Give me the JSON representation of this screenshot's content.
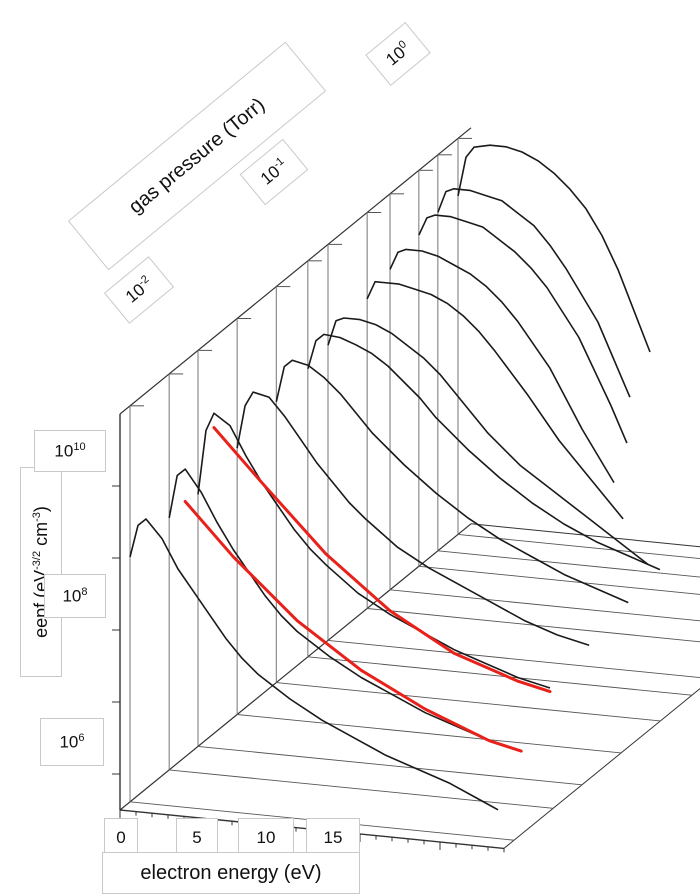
{
  "chart_data": {
    "type": "line",
    "style": "3d-waterfall",
    "xlabel": "electron energy (eV)",
    "ylabel_parts": [
      "eepf (eV",
      "-3/2",
      " cm",
      "-3",
      ")"
    ],
    "zlabel": "gas pressure (Torr)",
    "x_ticks": [
      "0",
      "5",
      "10",
      "15"
    ],
    "y_ticks": [
      {
        "base": "10",
        "exp": "10"
      },
      {
        "base": "10",
        "exp": "8"
      },
      {
        "base": "10",
        "exp": "6"
      }
    ],
    "z_ticks": [
      {
        "base": "10",
        "exp": "-2"
      },
      {
        "base": "10",
        "exp": "-1"
      },
      {
        "base": "10",
        "exp": "0"
      }
    ],
    "series_color": "#1a1a1a",
    "fit_color": "#e8211b",
    "series": [
      {
        "pressure": 0.003,
        "x": [
          0,
          0.5,
          1,
          2,
          3,
          4,
          5,
          6,
          7,
          8,
          10,
          12,
          14,
          16,
          18,
          20,
          22,
          23
        ],
        "y": [
          8.9,
          9.35,
          9.45,
          9.2,
          8.8,
          8.5,
          8.2,
          7.9,
          7.65,
          7.45,
          7.15,
          6.9,
          6.7,
          6.5,
          6.35,
          6.2,
          6.0,
          5.9
        ]
      },
      {
        "pressure": 0.006,
        "x": [
          0,
          0.5,
          1,
          2,
          3,
          4,
          5,
          6,
          7,
          8,
          10,
          12,
          14,
          16,
          18,
          20,
          22
        ],
        "y": [
          9.0,
          9.6,
          9.7,
          9.4,
          9.0,
          8.65,
          8.35,
          8.05,
          7.8,
          7.6,
          7.3,
          7.05,
          6.85,
          6.65,
          6.5,
          6.35,
          6.25
        ]
      },
      {
        "pressure": 0.01,
        "x": [
          0,
          0.5,
          1,
          2,
          3,
          4,
          5,
          6,
          7,
          8,
          10,
          12,
          14,
          16,
          18,
          20,
          22
        ],
        "y": [
          9.0,
          9.9,
          10.15,
          10.0,
          9.6,
          9.25,
          8.95,
          8.65,
          8.4,
          8.2,
          7.85,
          7.6,
          7.4,
          7.2,
          7.05,
          6.9,
          6.8
        ]
      },
      {
        "pressure": 0.02,
        "x": [
          0,
          0.5,
          1,
          2,
          3,
          4,
          5,
          6,
          7,
          8,
          10,
          12,
          14,
          16,
          18,
          20,
          22
        ],
        "y": [
          9.2,
          9.8,
          10.0,
          9.95,
          9.7,
          9.4,
          9.1,
          8.85,
          8.6,
          8.4,
          8.05,
          7.8,
          7.6,
          7.4,
          7.2,
          7.05,
          6.95
        ]
      },
      {
        "pressure": 0.04,
        "x": [
          0,
          0.5,
          1,
          2,
          3,
          4,
          5,
          6,
          7,
          8,
          10,
          12,
          14,
          16,
          18,
          20,
          22
        ],
        "y": [
          9.4,
          9.9,
          10.0,
          9.95,
          9.8,
          9.6,
          9.35,
          9.1,
          8.9,
          8.7,
          8.35,
          8.05,
          7.8,
          7.6,
          7.4,
          7.25,
          7.1
        ]
      },
      {
        "pressure": 0.07,
        "x": [
          0,
          0.5,
          1,
          2,
          3,
          4,
          5,
          6,
          7,
          8,
          10,
          12,
          14,
          16,
          18,
          20,
          22
        ],
        "y": [
          9.5,
          9.9,
          10.0,
          9.98,
          9.9,
          9.8,
          9.65,
          9.45,
          9.25,
          9.0,
          8.6,
          8.25,
          7.95,
          7.7,
          7.5,
          7.35,
          7.2
        ]
      },
      {
        "pressure": 0.1,
        "x": [
          0,
          0.5,
          1,
          2,
          3,
          4,
          5,
          6,
          7,
          8,
          10,
          12,
          14,
          16,
          18,
          20
        ],
        "y": [
          9.6,
          9.95,
          10.0,
          10.0,
          9.95,
          9.85,
          9.7,
          9.55,
          9.35,
          9.1,
          8.6,
          8.2,
          7.9,
          7.6,
          7.3,
          7.0
        ]
      },
      {
        "pressure": 0.2,
        "x": [
          0,
          0.5,
          1,
          2,
          3,
          4,
          5,
          6,
          7,
          8,
          10,
          12,
          14,
          16
        ],
        "y": [
          9.8,
          10.05,
          10.05,
          10.05,
          10.0,
          9.95,
          9.85,
          9.7,
          9.5,
          9.25,
          8.7,
          8.1,
          7.6,
          7.1
        ]
      },
      {
        "pressure": 0.3,
        "x": [
          0,
          0.5,
          1,
          2,
          3,
          4,
          5,
          6,
          7,
          8,
          10,
          12,
          14
        ],
        "y": [
          9.95,
          10.2,
          10.25,
          10.25,
          10.2,
          10.1,
          10.0,
          9.85,
          9.65,
          9.4,
          8.8,
          8.0,
          7.3
        ]
      },
      {
        "pressure": 0.5,
        "x": [
          0,
          0.5,
          1,
          2,
          3,
          4,
          5,
          6,
          7,
          8,
          10,
          12,
          13
        ],
        "y": [
          10.1,
          10.35,
          10.4,
          10.4,
          10.35,
          10.3,
          10.15,
          10.0,
          9.8,
          9.55,
          8.9,
          8.0,
          7.5
        ]
      },
      {
        "pressure": 0.7,
        "x": [
          0,
          0.5,
          1,
          2,
          3,
          4,
          5,
          6,
          7,
          8,
          10,
          12
        ],
        "y": [
          10.2,
          10.5,
          10.55,
          10.55,
          10.5,
          10.45,
          10.3,
          10.15,
          9.9,
          9.6,
          8.9,
          7.9
        ]
      },
      {
        "pressure": 1.0,
        "x": [
          0,
          0.5,
          1,
          2,
          3,
          4,
          5,
          6,
          7,
          8,
          9,
          10,
          11,
          12
        ],
        "y": [
          10.2,
          10.75,
          10.9,
          10.95,
          10.95,
          10.9,
          10.8,
          10.65,
          10.45,
          10.2,
          9.85,
          9.4,
          8.85,
          8.3
        ]
      }
    ],
    "fit_lines": [
      {
        "pressure": 0.006,
        "x": [
          1,
          4,
          8,
          12,
          16,
          20,
          22
        ],
        "y": [
          9.25,
          8.55,
          7.75,
          7.15,
          6.7,
          6.35,
          6.25
        ]
      },
      {
        "pressure": 0.01,
        "x": [
          1,
          4,
          8,
          12,
          16,
          20,
          22
        ],
        "y": [
          9.95,
          9.25,
          8.35,
          7.65,
          7.15,
          6.85,
          6.75
        ]
      }
    ],
    "xlim": [
      0,
      23
    ],
    "ylim_log10": [
      5.5,
      11
    ],
    "zlim_log10": [
      -2.6,
      0.1
    ],
    "grid": true
  }
}
